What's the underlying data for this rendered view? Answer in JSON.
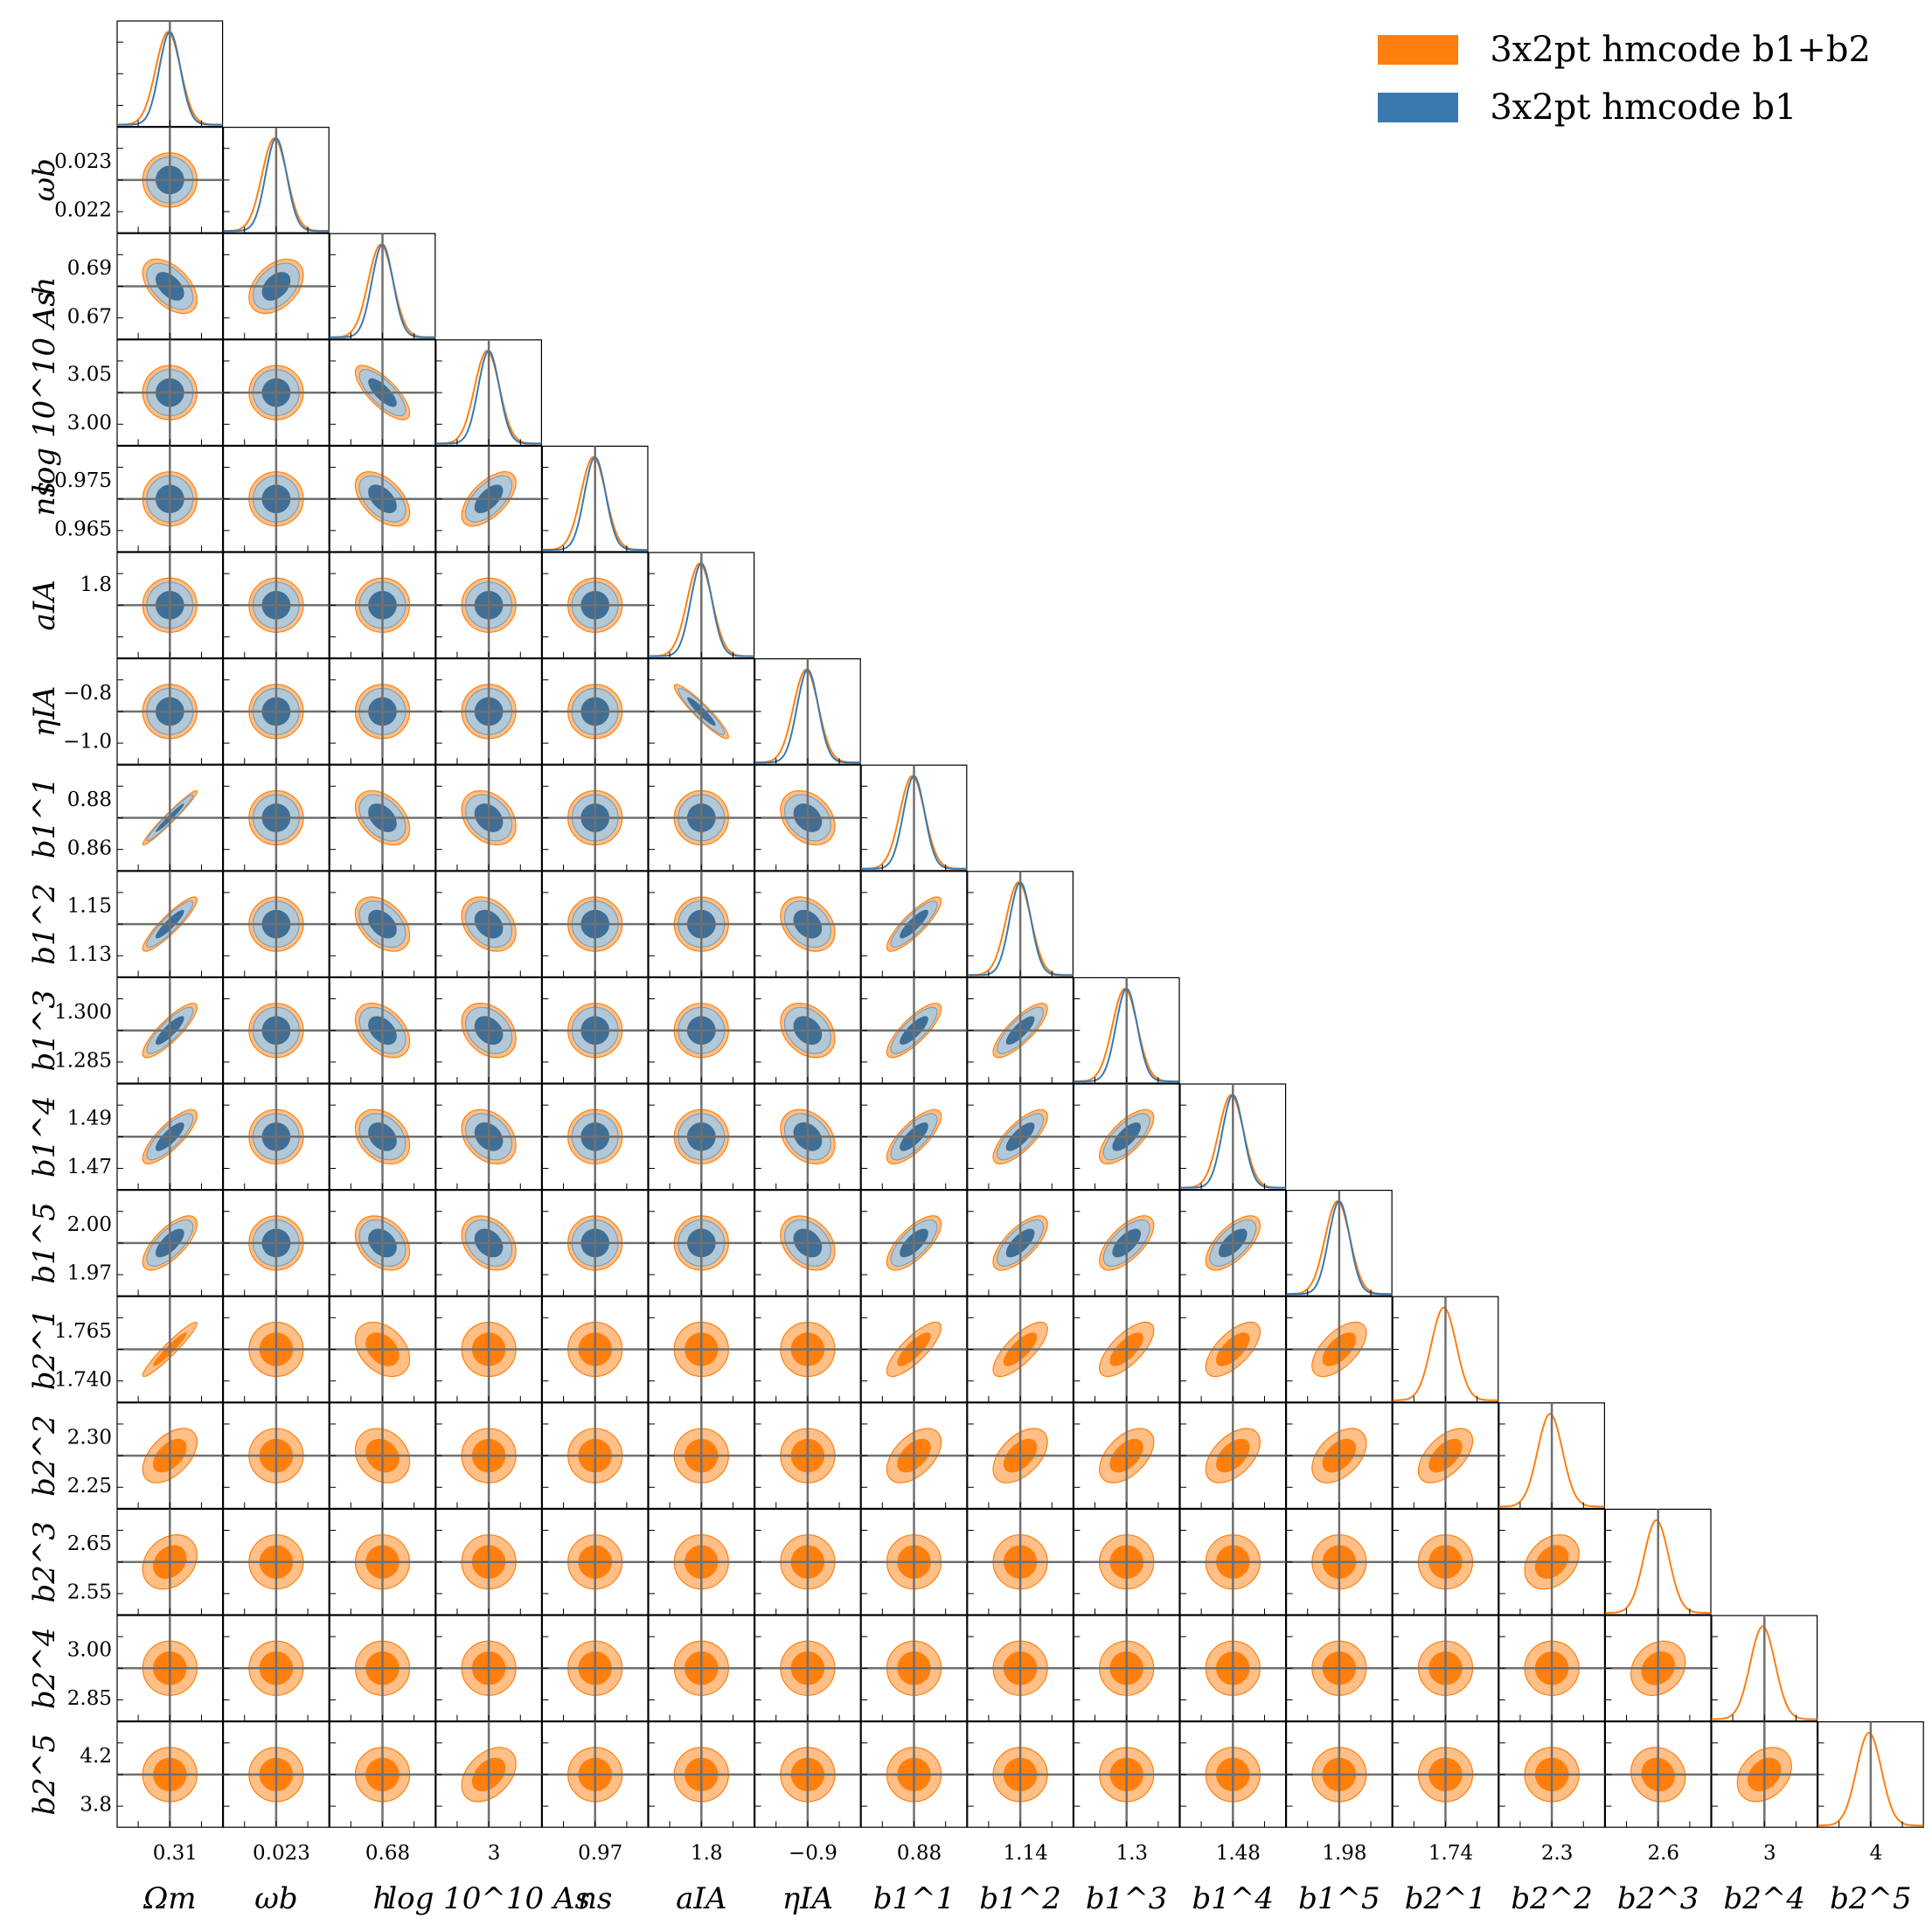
{
  "colors": {
    "b1b2_fill_inner": "#ff7f0e",
    "b1b2_fill_outer": "#ffbf86",
    "b1b2_line": "#ff7f0e",
    "b1_fill_inner": "#3f6e96",
    "b1_fill_outer": "#b3c8d6",
    "b1_line": "#3a78b0",
    "fiducial_line": "#707070",
    "axes": "#000000"
  },
  "legend": [
    {
      "label": "3x2pt hmcode b1+b2",
      "color": "#ff7f0e"
    },
    {
      "label": "3x2pt hmcode b1",
      "color": "#3a78b0"
    }
  ],
  "chart_data": {
    "type": "corner",
    "title": "",
    "series": [
      {
        "name": "3x2pt hmcode b1+b2",
        "parameters": "all 17"
      },
      {
        "name": "3x2pt hmcode b1",
        "parameters": "first 12 (no b2 parameters)"
      }
    ],
    "parameters": [
      {
        "key": "Om",
        "label": "Ωm",
        "fiducial": 0.31,
        "sigma": 0.005,
        "yticks": [],
        "xticks": [
          "0.31"
        ]
      },
      {
        "key": "wb",
        "label": "ωb",
        "fiducial": 0.0225,
        "sigma": 0.00045,
        "yticks": [
          "0.023",
          "0.022"
        ],
        "xticks": [
          "0.023"
        ]
      },
      {
        "key": "h",
        "label": "h",
        "fiducial": 0.68,
        "sigma": 0.006,
        "yticks": [
          "0.69",
          "0.67"
        ],
        "xticks": [
          "0.68"
        ]
      },
      {
        "key": "As",
        "label": "log 10^10 As",
        "fiducial": 3.045,
        "sigma": 0.02,
        "yticks": [
          "3.05",
          "3.00"
        ],
        "xticks": [
          "3"
        ]
      },
      {
        "key": "ns",
        "label": "ns",
        "fiducial": 0.97,
        "sigma": 0.003,
        "yticks": [
          "0.975",
          "0.965"
        ],
        "xticks": [
          "0.97"
        ]
      },
      {
        "key": "aIA",
        "label": "aIA",
        "fiducial": 1.72,
        "sigma": 0.05,
        "yticks": [
          "1.8"
        ],
        "xticks": [
          "1.8"
        ]
      },
      {
        "key": "eIA",
        "label": "ηIA",
        "fiducial": -0.9,
        "sigma": 0.05,
        "yticks": [
          "−0.8",
          "−1.0"
        ],
        "xticks": [
          "−0.9"
        ]
      },
      {
        "key": "b11",
        "label": "b1^1",
        "fiducial": 0.872,
        "sigma": 0.004,
        "yticks": [
          "0.88",
          "0.86"
        ],
        "xticks": [
          "0.88"
        ]
      },
      {
        "key": "b12",
        "label": "b1^2",
        "fiducial": 1.138,
        "sigma": 0.004,
        "yticks": [
          "1.15",
          "1.13"
        ],
        "xticks": [
          "1.14"
        ]
      },
      {
        "key": "b13",
        "label": "b1^3",
        "fiducial": 1.292,
        "sigma": 0.004,
        "yticks": [
          "1.300",
          "1.285"
        ],
        "xticks": [
          "1.3"
        ]
      },
      {
        "key": "b14",
        "label": "b1^4",
        "fiducial": 1.478,
        "sigma": 0.005,
        "yticks": [
          "1.49",
          "1.47"
        ],
        "xticks": [
          "1.48"
        ]
      },
      {
        "key": "b15",
        "label": "b1^5",
        "fiducial": 1.98,
        "sigma": 0.007,
        "yticks": [
          "2.00",
          "1.97"
        ],
        "xticks": [
          "1.98"
        ]
      },
      {
        "key": "b21",
        "label": "b2^1",
        "fiducial": 1.74,
        "sigma": 0.007,
        "yticks": [
          "1.765",
          "1.740"
        ],
        "xticks": [
          "1.74"
        ]
      },
      {
        "key": "b22",
        "label": "b2^2",
        "fiducial": 2.27,
        "sigma": 0.015,
        "yticks": [
          "2.30",
          "2.25"
        ],
        "xticks": [
          "2.3"
        ]
      },
      {
        "key": "b23",
        "label": "b2^3",
        "fiducial": 2.59,
        "sigma": 0.03,
        "yticks": [
          "2.65",
          "2.55"
        ],
        "xticks": [
          "2.6"
        ]
      },
      {
        "key": "b24",
        "label": "b2^4",
        "fiducial": 2.95,
        "sigma": 0.05,
        "yticks": [
          "3.00",
          "2.85"
        ],
        "xticks": [
          "3"
        ]
      },
      {
        "key": "b25",
        "label": "b2^5",
        "fiducial": 4.0,
        "sigma": 0.12,
        "yticks": [
          "4.2",
          "3.8"
        ],
        "xticks": [
          "4"
        ]
      }
    ],
    "correlations": {
      "Om-h": -0.5,
      "Om-b11": 0.97,
      "Om-b12": 0.9,
      "Om-b13": 0.85,
      "Om-b14": 0.8,
      "Om-b15": 0.7,
      "Om-b21": 0.95,
      "Om-b22": 0.5,
      "Om-b23": 0.25,
      "wb-h": 0.4,
      "h-As": -0.75,
      "h-ns": -0.5,
      "h-b11": -0.4,
      "h-b12": -0.4,
      "h-b13": -0.4,
      "h-b14": -0.3,
      "h-b15": -0.3,
      "h-b21": -0.35,
      "h-b22": -0.2,
      "As-ns": 0.6,
      "As-b11": -0.3,
      "As-b12": -0.3,
      "As-b13": -0.3,
      "As-b14": -0.3,
      "As-b15": -0.3,
      "As-b25": 0.4,
      "aIA-eIA": -0.93,
      "eIA-b11": -0.3,
      "eIA-b12": -0.3,
      "eIA-b13": -0.3,
      "eIA-b14": -0.3,
      "eIA-b15": -0.3,
      "b11-b12": 0.85,
      "b11-b13": 0.8,
      "b11-b14": 0.75,
      "b11-b15": 0.7,
      "b11-b21": 0.8,
      "b11-b22": 0.5,
      "b12-b13": 0.8,
      "b12-b14": 0.75,
      "b12-b15": 0.7,
      "b12-b21": 0.75,
      "b12-b22": 0.5,
      "b13-b14": 0.7,
      "b13-b15": 0.65,
      "b13-b21": 0.7,
      "b13-b22": 0.5,
      "b14-b15": 0.65,
      "b14-b21": 0.65,
      "b14-b22": 0.5,
      "b15-b21": 0.6,
      "b15-b22": 0.45,
      "b21-b22": 0.55,
      "b22-b23": 0.3,
      "b23-b24": 0.2,
      "b24-b25": 0.3,
      "b23-b25": -0.1
    },
    "b1_only_width_ratio": 0.85,
    "fiducial_lines": true,
    "contour_levels": [
      "68%",
      "95%"
    ],
    "legend_placement": "top-right",
    "grid": false
  }
}
